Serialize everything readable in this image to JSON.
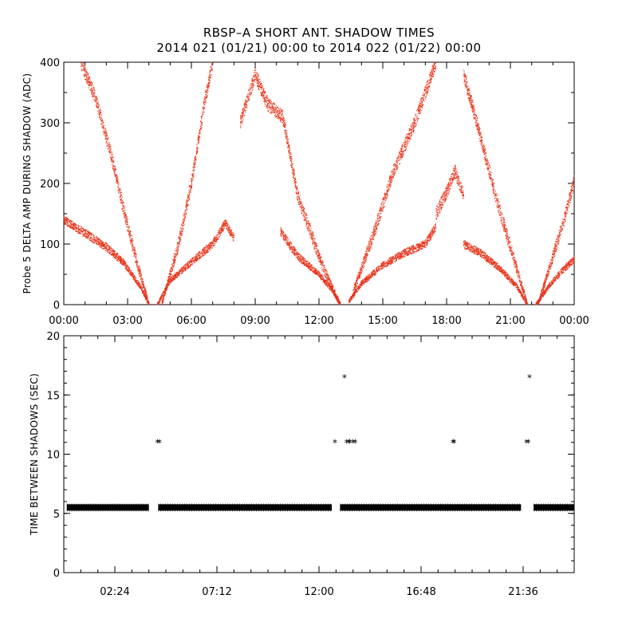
{
  "page": {
    "title_line1": "RBSP–A SHORT ANT. SHADOW TIMES",
    "title_line2": "2014 021 (01/21) 00:00 to 2014 022 (01/22) 00:00"
  },
  "chart_data": [
    {
      "type": "scatter",
      "ylabel": "Probe 5 DELTA AMP DURING SHADOW (ADC)",
      "xlabel": "",
      "xlim": [
        0,
        24
      ],
      "ylim": [
        0,
        400
      ],
      "x_tick_labels": [
        "00:00",
        "03:00",
        "06:00",
        "09:00",
        "12:00",
        "15:00",
        "18:00",
        "21:00",
        "00:00"
      ],
      "x_ticks": [
        0,
        3,
        6,
        9,
        12,
        15,
        18,
        21,
        24
      ],
      "y_tick_labels": [
        "0",
        "100",
        "200",
        "300",
        "400"
      ],
      "y_ticks": [
        0,
        100,
        200,
        300,
        400
      ],
      "color": "#e8331a",
      "grid": false,
      "series": [
        {
          "branch": "low",
          "x": [
            0.0,
            1.0,
            2.0,
            2.8,
            3.6,
            4.0
          ],
          "y": [
            140,
            118,
            95,
            70,
            30,
            0
          ]
        },
        {
          "branch": "high",
          "x": [
            0.8,
            1.5,
            2.2,
            2.8,
            3.4,
            4.0
          ],
          "y": [
            400,
            340,
            250,
            160,
            75,
            0
          ]
        },
        {
          "branch": "low",
          "x": [
            4.4,
            5.0,
            6.0,
            7.0,
            7.6,
            8.0
          ],
          "y": [
            0,
            40,
            70,
            100,
            135,
            110
          ]
        },
        {
          "branch": "high",
          "x": [
            4.6,
            5.4,
            6.0,
            6.6,
            7.0
          ],
          "y": [
            0,
            100,
            200,
            330,
            400
          ]
        },
        {
          "branch": "high",
          "x": [
            8.3,
            9.0,
            9.6,
            10.3,
            11.0,
            12.2,
            13.0
          ],
          "y": [
            300,
            380,
            330,
            310,
            180,
            60,
            0
          ]
        },
        {
          "branch": "low",
          "x": [
            10.2,
            11.0,
            12.0,
            12.6,
            13.0
          ],
          "y": [
            120,
            80,
            50,
            25,
            0
          ]
        },
        {
          "branch": "low",
          "x": [
            13.4,
            14.0,
            15.0,
            16.0,
            17.0,
            17.5
          ],
          "y": [
            5,
            35,
            65,
            85,
            100,
            130
          ]
        },
        {
          "branch": "high",
          "x": [
            13.6,
            14.6,
            15.5,
            16.5,
            17.0,
            17.5
          ],
          "y": [
            20,
            120,
            220,
            300,
            350,
            400
          ]
        },
        {
          "branch": "high",
          "x": [
            17.5,
            18.0,
            18.4,
            18.8
          ],
          "y": [
            150,
            185,
            220,
            180
          ]
        },
        {
          "branch": "high",
          "x": [
            18.8,
            19.5,
            20.3,
            21.0,
            21.8
          ],
          "y": [
            380,
            290,
            180,
            95,
            0
          ]
        },
        {
          "branch": "low",
          "x": [
            18.8,
            19.6,
            20.5,
            21.3,
            21.8
          ],
          "y": [
            100,
            85,
            60,
            30,
            0
          ]
        },
        {
          "branch": "low",
          "x": [
            22.2,
            22.8,
            23.4,
            24.0
          ],
          "y": [
            0,
            30,
            55,
            75
          ]
        },
        {
          "branch": "high",
          "x": [
            22.3,
            23.0,
            23.6,
            24.0
          ],
          "y": [
            0,
            80,
            150,
            205
          ]
        }
      ]
    },
    {
      "type": "scatter",
      "ylabel": "TIME BETWEEN SHADOWS (SEC)",
      "xlabel": "",
      "xlim": [
        0,
        24
      ],
      "ylim": [
        0,
        20
      ],
      "x_tick_labels": [
        "02:24",
        "07:12",
        "12:00",
        "16:48",
        "21:36"
      ],
      "x_ticks": [
        2.4,
        7.2,
        12.0,
        16.8,
        21.6
      ],
      "y_tick_labels": [
        "0",
        "5",
        "10",
        "15",
        "20"
      ],
      "y_ticks": [
        0,
        5,
        10,
        15,
        20
      ],
      "color": "#000000",
      "marker": "asterisk",
      "grid": false,
      "baseline": {
        "y": 5.5,
        "segments": [
          [
            0.15,
            4.0
          ],
          [
            4.45,
            12.6
          ],
          [
            13.0,
            21.5
          ],
          [
            22.1,
            24.0
          ]
        ]
      },
      "points": {
        "x": [
          4.4,
          4.5,
          12.75,
          13.2,
          13.3,
          13.4,
          13.45,
          13.6,
          13.7,
          18.3,
          18.35,
          21.75,
          21.85,
          21.9
        ],
        "y": [
          11,
          11,
          11,
          16.5,
          11,
          11,
          11,
          11,
          11,
          11,
          11,
          11,
          11,
          16.5
        ]
      }
    }
  ]
}
